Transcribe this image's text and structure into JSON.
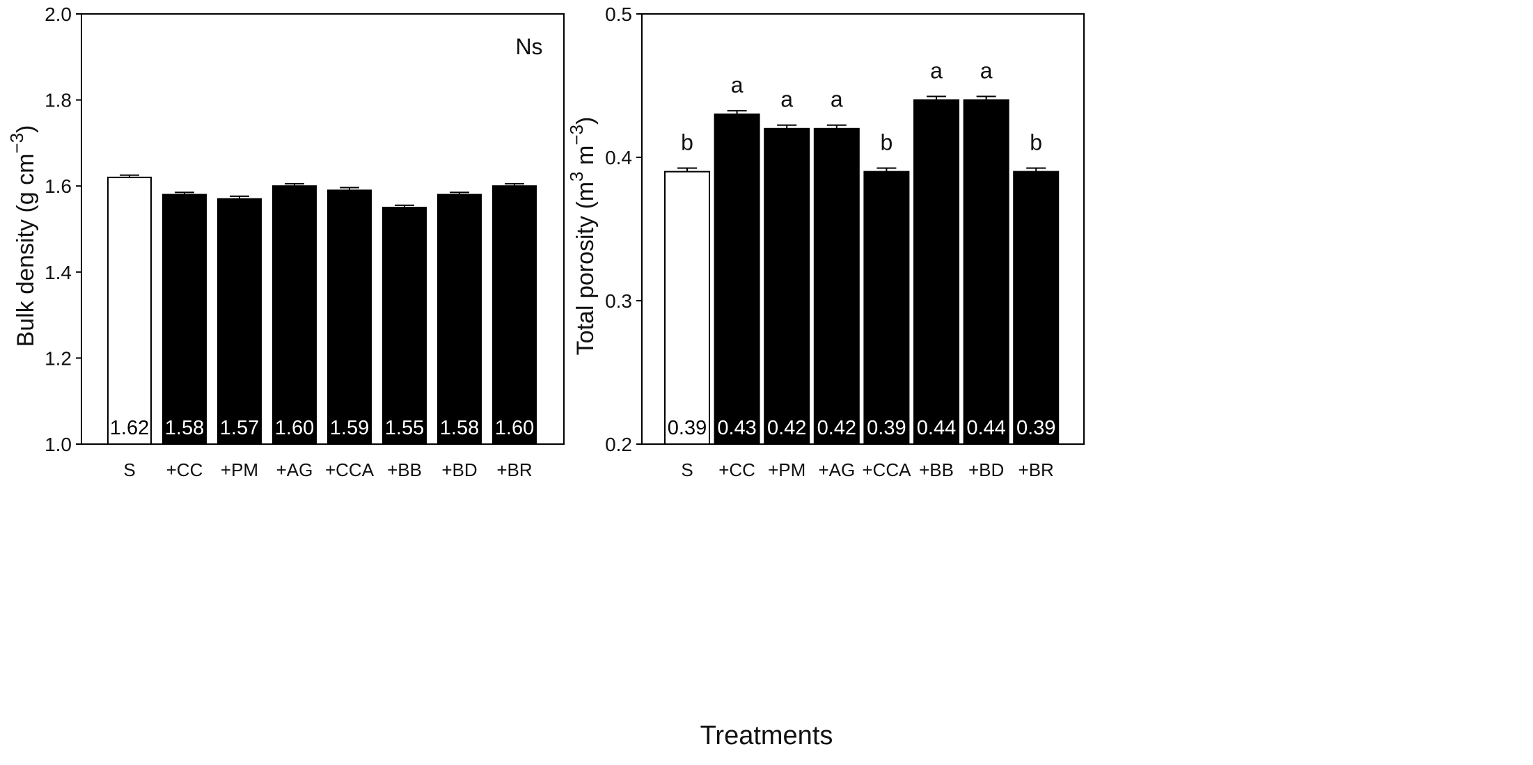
{
  "figure": {
    "shared_xlabel": "Treatments"
  },
  "chart_data": [
    {
      "type": "bar",
      "title": "",
      "xlabel": "",
      "ylabel": "Bulk density (g cm",
      "ylabel_superscript": "−3",
      "ylabel_suffix": ")",
      "ylim": [
        1.0,
        2.0
      ],
      "yticks": [
        "1.0",
        "1.2",
        "1.4",
        "1.6",
        "1.8",
        "2.0"
      ],
      "ytick_values": [
        1.0,
        1.2,
        1.4,
        1.6,
        1.8,
        2.0
      ],
      "categories": [
        "S",
        "+CC",
        "+PM",
        "+AG",
        "+CCA",
        "+BB",
        "+BD",
        "+BR"
      ],
      "values": [
        1.62,
        1.58,
        1.57,
        1.6,
        1.59,
        1.55,
        1.58,
        1.6
      ],
      "errors": [
        0.002,
        0.002,
        0.003,
        0.002,
        0.003,
        0.002,
        0.002,
        0.002
      ],
      "value_labels": [
        "1.62",
        "1.58",
        "1.57",
        "1.60",
        "1.59",
        "1.55",
        "1.58",
        "1.60"
      ],
      "bar_fills": [
        "#ffffff",
        "#000000",
        "#000000",
        "#000000",
        "#000000",
        "#000000",
        "#000000",
        "#000000"
      ],
      "significance_letters": [],
      "annotation": "Ns"
    },
    {
      "type": "bar",
      "title": "",
      "xlabel": "",
      "ylabel": "Total porosity (m",
      "ylabel_superscript": "3",
      "ylabel_mid": " m",
      "ylabel_superscript2": "−3",
      "ylabel_suffix": ")",
      "ylim": [
        0.2,
        0.5
      ],
      "yticks": [
        "0.2",
        "0.3",
        "0.4",
        "0.5"
      ],
      "ytick_values": [
        0.2,
        0.3,
        0.4,
        0.5
      ],
      "categories": [
        "S",
        "+CC",
        "+PM",
        "+AG",
        "+CCA",
        "+BB",
        "+BD",
        "+BR"
      ],
      "values": [
        0.39,
        0.43,
        0.42,
        0.42,
        0.39,
        0.44,
        0.44,
        0.39
      ],
      "errors": [
        0.0015,
        0.0015,
        0.0015,
        0.0015,
        0.0015,
        0.0015,
        0.0015,
        0.0015
      ],
      "value_labels": [
        "0.39",
        "0.43",
        "0.42",
        "0.42",
        "0.39",
        "0.44",
        "0.44",
        "0.39"
      ],
      "bar_fills": [
        "#ffffff",
        "#000000",
        "#000000",
        "#000000",
        "#000000",
        "#000000",
        "#000000",
        "#000000"
      ],
      "significance_letters": [
        "b",
        "a",
        "a",
        "a",
        "b",
        "a",
        "a",
        "b"
      ],
      "annotation": ""
    }
  ]
}
